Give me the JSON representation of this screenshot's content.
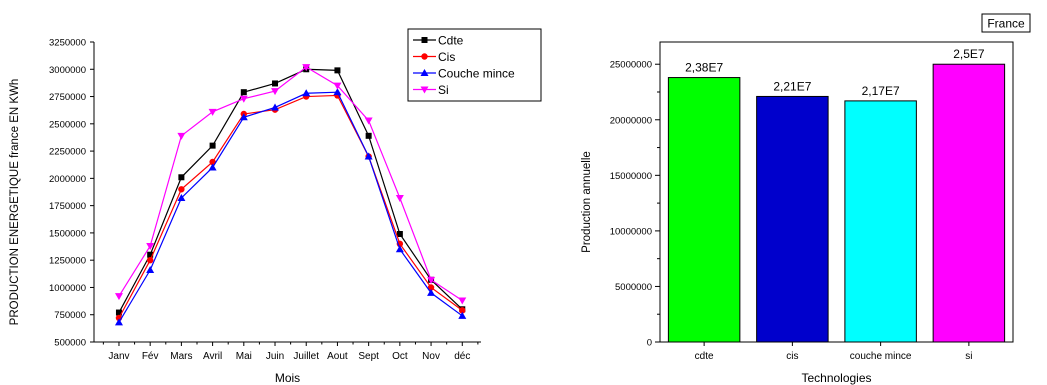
{
  "chart_data": [
    {
      "type": "line",
      "title": "",
      "xlabel": "Mois",
      "ylabel": "PRODUCTION ENERGETIQUE france EN KWh",
      "categories": [
        "Janv",
        "Fév",
        "Mars",
        "Avril",
        "Mai",
        "Juin",
        "Juillet",
        "Aout",
        "Sept",
        "Oct",
        "Nov",
        "déc"
      ],
      "ylim": [
        500000,
        3250000
      ],
      "yticks": [
        500000,
        750000,
        1000000,
        1250000,
        1500000,
        1750000,
        2000000,
        2250000,
        2500000,
        2750000,
        3000000,
        3250000
      ],
      "ytick_labels": [
        "500000",
        "750000",
        "1000000",
        "1250000",
        "1500000",
        "1750000",
        "2000000",
        "2250000",
        "2500000",
        "2750000",
        "3000000",
        "3250000"
      ],
      "grid": false,
      "legend": "top-right",
      "series": [
        {
          "name": "Cdte",
          "color": "#000000",
          "marker": "square",
          "values": [
            770000,
            1300000,
            2010000,
            2300000,
            2790000,
            2870000,
            3000000,
            2990000,
            2390000,
            1490000,
            1070000,
            800000
          ]
        },
        {
          "name": "Cis",
          "color": "#ff0000",
          "marker": "circle",
          "values": [
            720000,
            1250000,
            1900000,
            2150000,
            2590000,
            2630000,
            2750000,
            2760000,
            2200000,
            1400000,
            1000000,
            790000
          ]
        },
        {
          "name": "Couche mince",
          "color": "#0000ff",
          "marker": "triangle-up",
          "values": [
            680000,
            1160000,
            1820000,
            2100000,
            2560000,
            2650000,
            2780000,
            2790000,
            2200000,
            1350000,
            950000,
            740000
          ]
        },
        {
          "name": "Si",
          "color": "#ff00ff",
          "marker": "triangle-down",
          "values": [
            920000,
            1380000,
            2390000,
            2610000,
            2730000,
            2800000,
            3020000,
            2850000,
            2530000,
            1820000,
            1070000,
            880000
          ]
        }
      ]
    },
    {
      "type": "bar",
      "title": "France",
      "xlabel": "Technologies",
      "ylabel": "Production annuelle",
      "categories": [
        "cdte",
        "cis",
        "couche mince",
        "si"
      ],
      "values": [
        23800000,
        22100000,
        21700000,
        25000000
      ],
      "data_labels": [
        "2,38E7",
        "2,21E7",
        "2,17E7",
        "2,5E7"
      ],
      "colors": [
        "#00ff00",
        "#0000cc",
        "#00ffff",
        "#ff00ff"
      ],
      "ylim": [
        0,
        27000000
      ],
      "yticks": [
        0,
        5000000,
        10000000,
        15000000,
        20000000,
        25000000
      ],
      "ytick_labels": [
        "0",
        "5000000",
        "10000000",
        "15000000",
        "20000000",
        "25000000"
      ],
      "grid": false,
      "legend": "none"
    }
  ]
}
